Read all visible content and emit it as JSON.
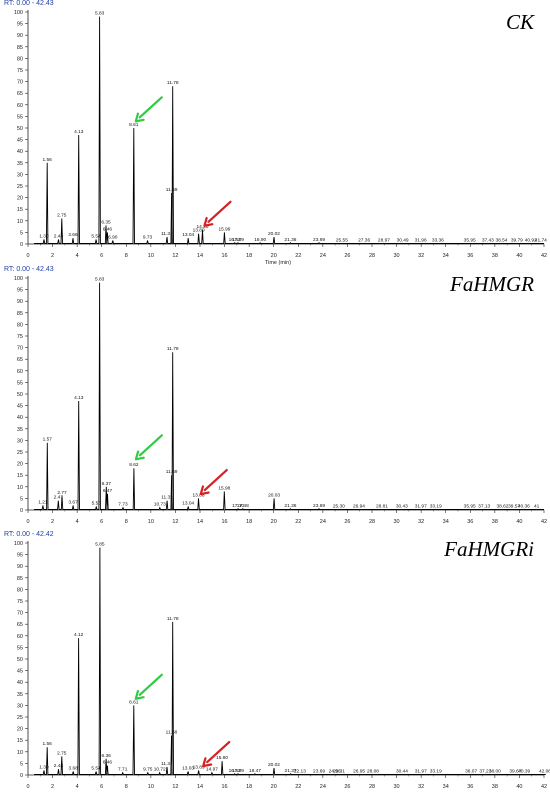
{
  "colors": {
    "trace": "#000000",
    "axis": "#222222",
    "rt_label": "#1f3fa8",
    "green_arrow": "#2ecc40",
    "red_arrow": "#d42020"
  },
  "chart_data": [
    {
      "type": "line",
      "title": "CK",
      "rt_label": "RT: 0.00 - 42.43",
      "xlabel": "Time (min)",
      "xlim": [
        0,
        42
      ],
      "ylim": [
        0,
        100
      ],
      "x_ticks": [
        0,
        2,
        4,
        6,
        8,
        10,
        12,
        14,
        16,
        18,
        20,
        22,
        24,
        26,
        28,
        30,
        32,
        34,
        36,
        38,
        40,
        42
      ],
      "y_ticks": [
        0,
        5,
        10,
        15,
        20,
        25,
        30,
        35,
        40,
        45,
        50,
        55,
        60,
        65,
        70,
        75,
        80,
        85,
        90,
        95,
        100
      ],
      "peaks": [
        {
          "label": "1.30",
          "rt": 1.3,
          "height": 2
        },
        {
          "label": "1.56",
          "rt": 1.56,
          "height": 35
        },
        {
          "label": "2.48",
          "rt": 2.48,
          "height": 2
        },
        {
          "label": "2.75",
          "rt": 2.75,
          "height": 11
        },
        {
          "label": "3.66",
          "rt": 3.66,
          "height": 2.5
        },
        {
          "label": "4.13",
          "rt": 4.13,
          "height": 47
        },
        {
          "label": "5.54",
          "rt": 5.54,
          "height": 2
        },
        {
          "label": "5.83",
          "rt": 5.83,
          "height": 98
        },
        {
          "label": "6.35",
          "rt": 6.35,
          "height": 8
        },
        {
          "label": "6.46",
          "rt": 6.46,
          "height": 5
        },
        {
          "label": "6.90",
          "rt": 6.9,
          "height": 1.5
        },
        {
          "label": "8.61",
          "rt": 8.61,
          "height": 50
        },
        {
          "label": "9.73",
          "rt": 9.73,
          "height": 1.5
        },
        {
          "label": "11.31",
          "rt": 11.31,
          "height": 3
        },
        {
          "label": "11.69",
          "rt": 11.69,
          "height": 22
        },
        {
          "label": "11.78",
          "rt": 11.78,
          "height": 68
        },
        {
          "label": "13.04",
          "rt": 13.04,
          "height": 2.5
        },
        {
          "label": "13.89",
          "rt": 13.89,
          "height": 4.5
        },
        {
          "label": "14.20",
          "rt": 14.2,
          "height": 6
        },
        {
          "label": "15.99",
          "rt": 15.99,
          "height": 5
        },
        {
          "label": "16.82",
          "rt": 16.82,
          "height": 0.5
        },
        {
          "label": "17.09",
          "rt": 17.09,
          "height": 0.5
        },
        {
          "label": "18.90",
          "rt": 18.9,
          "height": 0.5
        },
        {
          "label": "20.02",
          "rt": 20.02,
          "height": 3
        },
        {
          "label": "21.36",
          "rt": 21.36,
          "height": 0.5
        },
        {
          "label": "23.69",
          "rt": 23.69,
          "height": 0.5
        },
        {
          "label": "25.55",
          "rt": 25.55,
          "height": 0.3
        },
        {
          "label": "27.36",
          "rt": 27.36,
          "height": 0.3
        },
        {
          "label": "28.97",
          "rt": 28.97,
          "height": 0.3
        },
        {
          "label": "30.49",
          "rt": 30.49,
          "height": 0.3
        },
        {
          "label": "31.96",
          "rt": 31.96,
          "height": 0.3
        },
        {
          "label": "33.36",
          "rt": 33.36,
          "height": 0.3
        },
        {
          "label": "35.95",
          "rt": 35.95,
          "height": 0.3
        },
        {
          "label": "37.43",
          "rt": 37.43,
          "height": 0.3
        },
        {
          "label": "38.54",
          "rt": 38.54,
          "height": 0.3
        },
        {
          "label": "39.79",
          "rt": 39.79,
          "height": 0.3
        },
        {
          "label": "40.92",
          "rt": 40.92,
          "height": 0.3
        },
        {
          "label": "41.74",
          "rt": 41.74,
          "height": 0.3
        }
      ],
      "arrows": [
        {
          "color": "green",
          "target_rt": 8.61,
          "target_y": 52
        },
        {
          "color": "red",
          "target_rt": 14.2,
          "target_y": 7
        }
      ]
    },
    {
      "type": "line",
      "title": "FaHMGR",
      "rt_label": "RT: 0.00 - 42.43",
      "xlabel": "",
      "xlim": [
        0,
        42
      ],
      "ylim": [
        0,
        100
      ],
      "x_ticks": [
        0,
        2,
        4,
        6,
        8,
        10,
        12,
        14,
        16,
        18,
        20,
        22,
        24,
        26,
        28,
        30,
        32,
        34,
        36,
        38,
        40,
        42
      ],
      "y_ticks": [
        0,
        5,
        10,
        15,
        20,
        25,
        30,
        35,
        40,
        45,
        50,
        55,
        60,
        65,
        70,
        75,
        80,
        85,
        90,
        95,
        100
      ],
      "peaks": [
        {
          "label": "1.21",
          "rt": 1.21,
          "height": 2
        },
        {
          "label": "1.57",
          "rt": 1.57,
          "height": 29
        },
        {
          "label": "2.47",
          "rt": 2.47,
          "height": 4
        },
        {
          "label": "2.77",
          "rt": 2.77,
          "height": 6
        },
        {
          "label": "3.67",
          "rt": 3.67,
          "height": 2
        },
        {
          "label": "4.13",
          "rt": 4.13,
          "height": 47
        },
        {
          "label": "5.56",
          "rt": 5.56,
          "height": 1.5
        },
        {
          "label": "5.83",
          "rt": 5.83,
          "height": 98
        },
        {
          "label": "6.37",
          "rt": 6.37,
          "height": 10
        },
        {
          "label": "6.47",
          "rt": 6.47,
          "height": 7
        },
        {
          "label": "7.73",
          "rt": 7.73,
          "height": 1
        },
        {
          "label": "8.62",
          "rt": 8.62,
          "height": 18
        },
        {
          "label": "10.73",
          "rt": 10.73,
          "height": 1
        },
        {
          "label": "11.32",
          "rt": 11.32,
          "height": 4
        },
        {
          "label": "11.69",
          "rt": 11.69,
          "height": 15
        },
        {
          "label": "11.78",
          "rt": 11.78,
          "height": 68
        },
        {
          "label": "13.04",
          "rt": 13.04,
          "height": 1.5
        },
        {
          "label": "13.88",
          "rt": 13.88,
          "height": 5
        },
        {
          "label": "15.98",
          "rt": 15.98,
          "height": 8
        },
        {
          "label": "17.10",
          "rt": 17.1,
          "height": 0.5
        },
        {
          "label": "17.48",
          "rt": 17.48,
          "height": 0.5
        },
        {
          "label": "20.03",
          "rt": 20.03,
          "height": 5
        },
        {
          "label": "21.36",
          "rt": 21.36,
          "height": 0.5
        },
        {
          "label": "23.69",
          "rt": 23.69,
          "height": 0.5
        },
        {
          "label": "25.30",
          "rt": 25.3,
          "height": 0.3
        },
        {
          "label": "26.94",
          "rt": 26.94,
          "height": 0.3
        },
        {
          "label": "28.81",
          "rt": 28.81,
          "height": 0.3
        },
        {
          "label": "30.43",
          "rt": 30.43,
          "height": 0.3
        },
        {
          "label": "31.97",
          "rt": 31.97,
          "height": 0.3
        },
        {
          "label": "33.19",
          "rt": 33.19,
          "height": 0.3
        },
        {
          "label": "35.95",
          "rt": 35.95,
          "height": 0.3
        },
        {
          "label": "37.13",
          "rt": 37.13,
          "height": 0.3
        },
        {
          "label": "38.62",
          "rt": 38.62,
          "height": 0.3
        },
        {
          "label": "39.57",
          "rt": 39.57,
          "height": 0.3
        },
        {
          "label": "40.36",
          "rt": 40.36,
          "height": 0.3
        },
        {
          "label": "41",
          "rt": 41.4,
          "height": 0.3
        }
      ],
      "arrows": [
        {
          "color": "green",
          "target_rt": 8.62,
          "target_y": 21
        },
        {
          "color": "red",
          "target_rt": 13.9,
          "target_y": 6
        }
      ]
    },
    {
      "type": "line",
      "title": "FaHMGRi",
      "rt_label": "RT: 0.00 - 42.42",
      "xlabel": "",
      "xlim": [
        0,
        42
      ],
      "ylim": [
        0,
        100
      ],
      "x_ticks": [
        0,
        2,
        4,
        6,
        8,
        10,
        12,
        14,
        16,
        18,
        20,
        22,
        24,
        26,
        28,
        30,
        32,
        34,
        36,
        38,
        40,
        42
      ],
      "y_ticks": [
        0,
        5,
        10,
        15,
        20,
        25,
        30,
        35,
        40,
        45,
        50,
        55,
        60,
        65,
        70,
        75,
        80,
        85,
        90,
        95,
        100
      ],
      "peaks": [
        {
          "label": "1.30",
          "rt": 1.3,
          "height": 2
        },
        {
          "label": "1.56",
          "rt": 1.56,
          "height": 12
        },
        {
          "label": "2.48",
          "rt": 2.48,
          "height": 2.5
        },
        {
          "label": "2.75",
          "rt": 2.75,
          "height": 8
        },
        {
          "label": "3.68",
          "rt": 3.68,
          "height": 1.5
        },
        {
          "label": "4.12",
          "rt": 4.12,
          "height": 59
        },
        {
          "label": "5.54",
          "rt": 5.54,
          "height": 1.5
        },
        {
          "label": "5.85",
          "rt": 5.85,
          "height": 98
        },
        {
          "label": "6.36",
          "rt": 6.36,
          "height": 7
        },
        {
          "label": "6.46",
          "rt": 6.46,
          "height": 4
        },
        {
          "label": "7.71",
          "rt": 7.71,
          "height": 1
        },
        {
          "label": "8.61",
          "rt": 8.61,
          "height": 30
        },
        {
          "label": "9.75",
          "rt": 9.75,
          "height": 1
        },
        {
          "label": "10.72",
          "rt": 10.72,
          "height": 1
        },
        {
          "label": "11.31",
          "rt": 11.31,
          "height": 3.5
        },
        {
          "label": "11.68",
          "rt": 11.68,
          "height": 17
        },
        {
          "label": "11.78",
          "rt": 11.78,
          "height": 66
        },
        {
          "label": "13.03",
          "rt": 13.03,
          "height": 1.5
        },
        {
          "label": "13.89",
          "rt": 13.89,
          "height": 2
        },
        {
          "label": "14.97",
          "rt": 14.97,
          "height": 1
        },
        {
          "label": "15.80",
          "rt": 15.8,
          "height": 6
        },
        {
          "label": "16.82",
          "rt": 16.82,
          "height": 0.5
        },
        {
          "label": "17.09",
          "rt": 17.09,
          "height": 0.5
        },
        {
          "label": "18.47",
          "rt": 18.47,
          "height": 0.5
        },
        {
          "label": "20.02",
          "rt": 20.02,
          "height": 3
        },
        {
          "label": "21.37",
          "rt": 21.37,
          "height": 0.5
        },
        {
          "label": "22.13",
          "rt": 22.13,
          "height": 0.3
        },
        {
          "label": "23.69",
          "rt": 23.69,
          "height": 0.3
        },
        {
          "label": "24.96",
          "rt": 24.96,
          "height": 0.3
        },
        {
          "label": "25.31",
          "rt": 25.31,
          "height": 0.3
        },
        {
          "label": "26.95",
          "rt": 26.95,
          "height": 0.3
        },
        {
          "label": "28.08",
          "rt": 28.08,
          "height": 0.3
        },
        {
          "label": "30.44",
          "rt": 30.44,
          "height": 0.3
        },
        {
          "label": "31.97",
          "rt": 31.97,
          "height": 0.3
        },
        {
          "label": "33.19",
          "rt": 33.19,
          "height": 0.3
        },
        {
          "label": "36.07",
          "rt": 36.07,
          "height": 0.3
        },
        {
          "label": "37.23",
          "rt": 37.23,
          "height": 0.3
        },
        {
          "label": "38.00",
          "rt": 38.0,
          "height": 0.3
        },
        {
          "label": "39.67",
          "rt": 39.67,
          "height": 0.3
        },
        {
          "label": "40.39",
          "rt": 40.39,
          "height": 0.3
        },
        {
          "label": "42.08",
          "rt": 42.08,
          "height": 0.3
        }
      ],
      "arrows": [
        {
          "color": "green",
          "target_rt": 8.61,
          "target_y": 32
        },
        {
          "color": "red",
          "target_rt": 14.1,
          "target_y": 3
        }
      ]
    }
  ]
}
